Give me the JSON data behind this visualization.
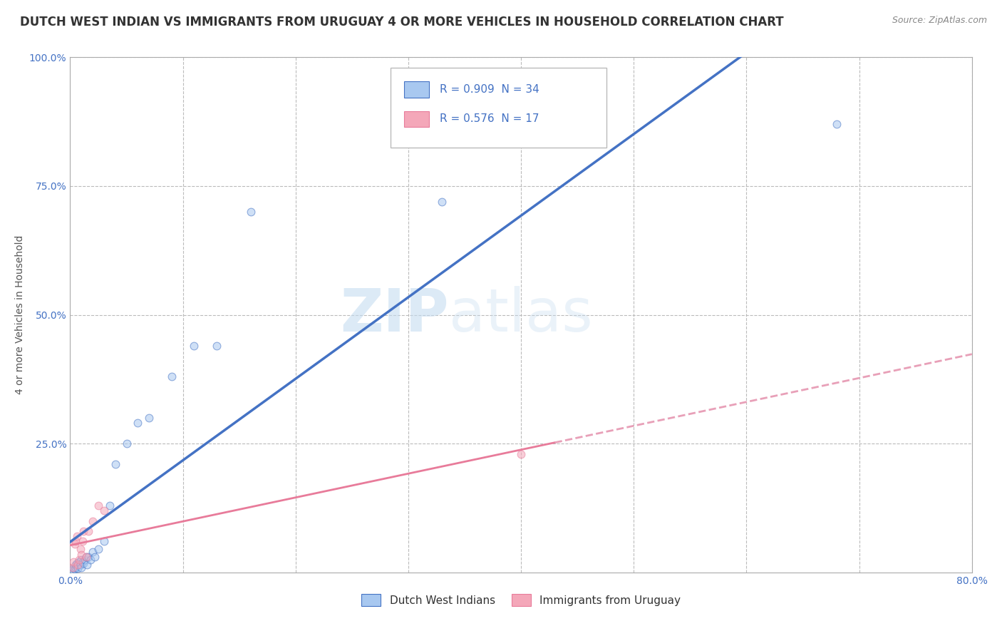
{
  "title": "DUTCH WEST INDIAN VS IMMIGRANTS FROM URUGUAY 4 OR MORE VEHICLES IN HOUSEHOLD CORRELATION CHART",
  "source": "Source: ZipAtlas.com",
  "ylabel": "4 or more Vehicles in Household",
  "xlabel": "",
  "xlim": [
    0.0,
    0.8
  ],
  "ylim": [
    0.0,
    1.0
  ],
  "xtick_vals": [
    0.0,
    0.1,
    0.2,
    0.3,
    0.4,
    0.5,
    0.6,
    0.7,
    0.8
  ],
  "ytick_vals": [
    0.0,
    0.25,
    0.5,
    0.75,
    1.0
  ],
  "ytick_labels": [
    "",
    "25.0%",
    "50.0%",
    "75.0%",
    "100.0%"
  ],
  "xtick_labels": [
    "0.0%",
    "",
    "",
    "",
    "",
    "",
    "",
    "",
    "80.0%"
  ],
  "blue_scatter_x": [
    0.002,
    0.003,
    0.004,
    0.005,
    0.005,
    0.006,
    0.006,
    0.007,
    0.008,
    0.009,
    0.01,
    0.01,
    0.011,
    0.012,
    0.013,
    0.014,
    0.015,
    0.016,
    0.018,
    0.02,
    0.022,
    0.025,
    0.03,
    0.035,
    0.04,
    0.05,
    0.06,
    0.07,
    0.09,
    0.11,
    0.13,
    0.16,
    0.33,
    0.68
  ],
  "blue_scatter_y": [
    0.005,
    0.008,
    0.006,
    0.01,
    0.015,
    0.012,
    0.018,
    0.008,
    0.02,
    0.015,
    0.025,
    0.01,
    0.02,
    0.018,
    0.025,
    0.03,
    0.015,
    0.03,
    0.025,
    0.04,
    0.03,
    0.045,
    0.06,
    0.13,
    0.21,
    0.25,
    0.29,
    0.3,
    0.38,
    0.44,
    0.44,
    0.7,
    0.72,
    0.87
  ],
  "pink_scatter_x": [
    0.002,
    0.003,
    0.004,
    0.005,
    0.006,
    0.007,
    0.008,
    0.009,
    0.01,
    0.011,
    0.012,
    0.014,
    0.016,
    0.02,
    0.025,
    0.03,
    0.4
  ],
  "pink_scatter_y": [
    0.01,
    0.02,
    0.055,
    0.06,
    0.07,
    0.015,
    0.025,
    0.045,
    0.035,
    0.06,
    0.08,
    0.03,
    0.08,
    0.1,
    0.13,
    0.12,
    0.23
  ],
  "blue_color": "#A8C8F0",
  "pink_color": "#F4A7B9",
  "blue_line_color": "#4472C4",
  "pink_line_color": "#E87B9A",
  "pink_line_color_solid": "#E87B9A",
  "pink_dashed_color": "#E8A0B8",
  "r_blue": "R = 0.909",
  "n_blue": "N = 34",
  "r_pink": "R = 0.576",
  "n_pink": "N = 17",
  "legend_blue_label": "Dutch West Indians",
  "legend_pink_label": "Immigrants from Uruguay",
  "watermark_zip": "ZIP",
  "watermark_atlas": "atlas",
  "background_color": "#FFFFFF",
  "grid_color": "#BBBBBB",
  "title_fontsize": 12,
  "label_fontsize": 10,
  "tick_fontsize": 10,
  "scatter_size": 60,
  "scatter_alpha": 0.55
}
